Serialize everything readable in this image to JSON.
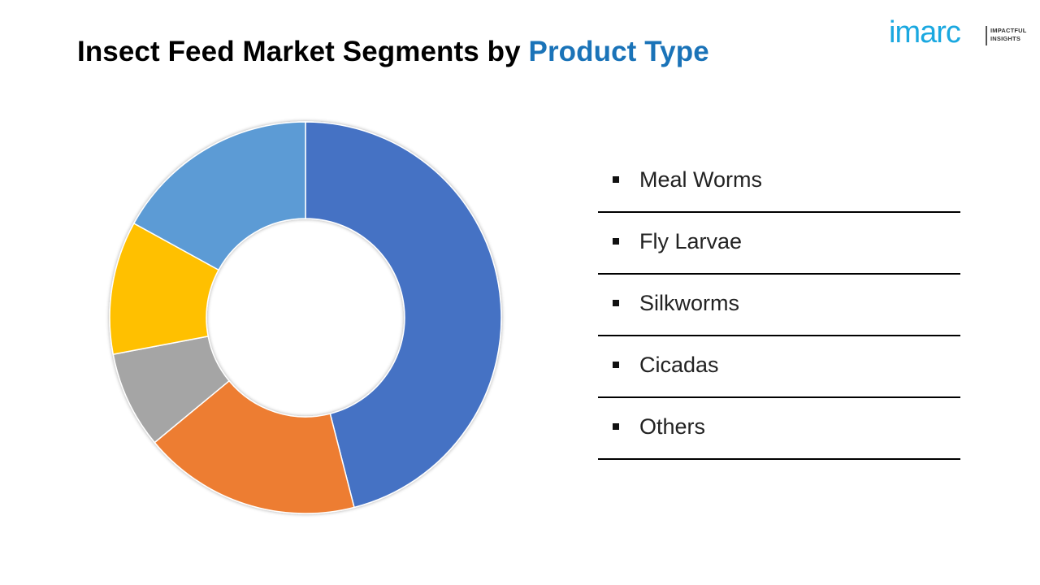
{
  "title": {
    "prefix": "Insect Feed Market Segments by ",
    "highlight": "Product Type"
  },
  "logo": {
    "wordmark": "imarc",
    "tagline_line1": "IMPACTFUL",
    "tagline_line2": "INSIGHTS",
    "color": "#1aa8e0"
  },
  "chart_data": {
    "type": "pie",
    "variant": "donut",
    "categories": [
      "Meal Worms",
      "Fly Larvae",
      "Silkworms",
      "Cicadas",
      "Others"
    ],
    "values": [
      46,
      18,
      8,
      11,
      17
    ],
    "colors": [
      "#4472c4",
      "#ed7d31",
      "#a5a5a5",
      "#ffc000",
      "#5b9bd5"
    ],
    "start_angle_deg": 0,
    "direction": "clockwise",
    "legend_position": "right"
  }
}
